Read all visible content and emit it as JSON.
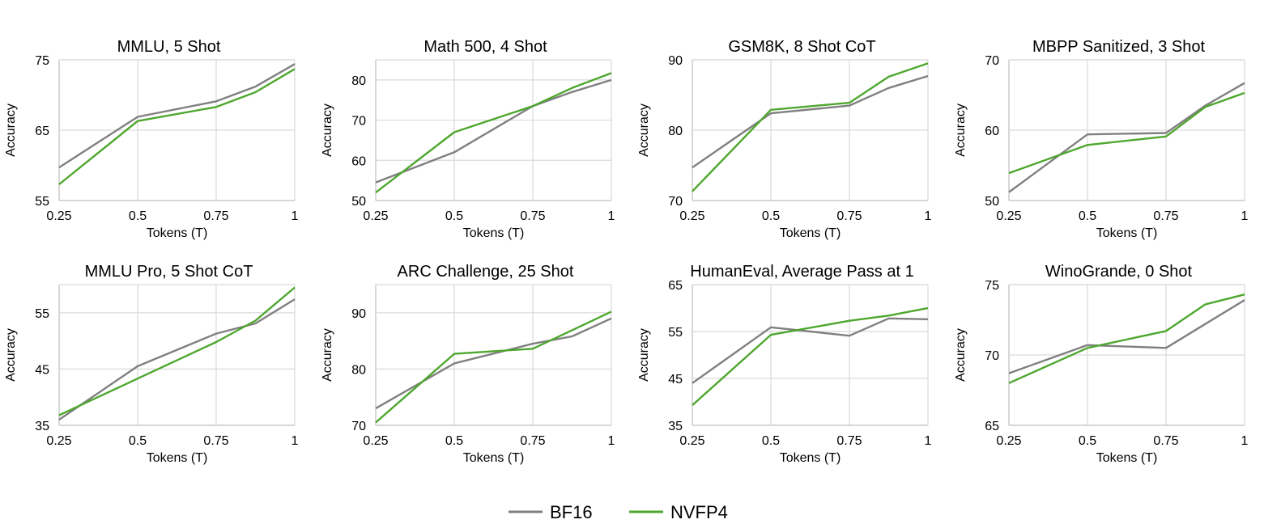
{
  "colors": {
    "BF16": "#808080",
    "NVFP4": "#4ea72e"
  },
  "legend": [
    {
      "name": "BF16",
      "color": "#808080"
    },
    {
      "name": "NVFP4",
      "color": "#4ea72e"
    }
  ],
  "chart_data": [
    {
      "type": "line",
      "title": "MMLU, 5 Shot",
      "xlabel": "Tokens (T)",
      "ylabel": "Accuracy",
      "xticks": [
        "0.25",
        "0.5",
        "0.75",
        "1"
      ],
      "yticks": [
        55,
        65,
        75
      ],
      "xlim": [
        0.25,
        1
      ],
      "ylim": [
        55,
        75
      ],
      "series": [
        {
          "name": "BF16",
          "x": [
            0.25,
            0.5,
            0.75,
            0.875,
            1
          ],
          "values": [
            59.7,
            66.9,
            69.1,
            71.2,
            74.4
          ]
        },
        {
          "name": "NVFP4",
          "x": [
            0.25,
            0.5,
            0.75,
            0.875,
            1
          ],
          "values": [
            57.3,
            66.3,
            68.3,
            70.4,
            73.7
          ]
        }
      ]
    },
    {
      "type": "line",
      "title": "Math 500, 4 Shot",
      "xlabel": "Tokens (T)",
      "ylabel": "Accuracy",
      "xticks": [
        "0.25",
        "0.5",
        "0.75",
        "1"
      ],
      "yticks": [
        50,
        60,
        70,
        80
      ],
      "xlim": [
        0.25,
        1
      ],
      "ylim": [
        50,
        85
      ],
      "series": [
        {
          "name": "BF16",
          "x": [
            0.25,
            0.5,
            0.75,
            0.875,
            1
          ],
          "values": [
            54.5,
            62.0,
            73.5,
            77.0,
            80.0
          ]
        },
        {
          "name": "NVFP4",
          "x": [
            0.25,
            0.5,
            0.75,
            0.875,
            1
          ],
          "values": [
            52.0,
            67.0,
            73.5,
            78.0,
            81.7
          ]
        }
      ]
    },
    {
      "type": "line",
      "title": "GSM8K, 8 Shot CoT",
      "xlabel": "Tokens (T)",
      "ylabel": "Accuracy",
      "xticks": [
        "0.25",
        "0.5",
        "0.75",
        "1"
      ],
      "yticks": [
        70,
        80,
        90
      ],
      "xlim": [
        0.25,
        1
      ],
      "ylim": [
        70,
        90
      ],
      "series": [
        {
          "name": "BF16",
          "x": [
            0.25,
            0.5,
            0.75,
            0.875,
            1
          ],
          "values": [
            74.7,
            82.4,
            83.5,
            86.0,
            87.7
          ]
        },
        {
          "name": "NVFP4",
          "x": [
            0.25,
            0.5,
            0.75,
            0.875,
            1
          ],
          "values": [
            71.3,
            82.9,
            83.9,
            87.6,
            89.5
          ]
        }
      ]
    },
    {
      "type": "line",
      "title": "MBPP Sanitized, 3 Shot",
      "xlabel": "Tokens (T)",
      "ylabel": "Accuracy",
      "xticks": [
        "0.25",
        "0.5",
        "0.75",
        "1"
      ],
      "yticks": [
        50,
        60,
        70
      ],
      "xlim": [
        0.25,
        1
      ],
      "ylim": [
        50,
        70
      ],
      "series": [
        {
          "name": "BF16",
          "x": [
            0.25,
            0.5,
            0.75,
            0.875,
            1
          ],
          "values": [
            51.2,
            59.4,
            59.6,
            63.5,
            66.7
          ]
        },
        {
          "name": "NVFP4",
          "x": [
            0.25,
            0.5,
            0.75,
            0.875,
            1
          ],
          "values": [
            53.9,
            57.9,
            59.1,
            63.3,
            65.3
          ]
        }
      ]
    },
    {
      "type": "line",
      "title": "MMLU Pro, 5 Shot CoT",
      "xlabel": "Tokens (T)",
      "ylabel": "Accuracy",
      "xticks": [
        "0.25",
        "0.5",
        "0.75",
        "1"
      ],
      "yticks": [
        35,
        45,
        55
      ],
      "xlim": [
        0.25,
        1
      ],
      "ylim": [
        35,
        60
      ],
      "series": [
        {
          "name": "BF16",
          "x": [
            0.25,
            0.5,
            0.75,
            0.875,
            1
          ],
          "values": [
            36.0,
            45.5,
            51.3,
            53.1,
            57.4
          ]
        },
        {
          "name": "NVFP4",
          "x": [
            0.25,
            0.5,
            0.75,
            0.875,
            1
          ],
          "values": [
            36.8,
            43.3,
            49.8,
            53.6,
            59.5
          ]
        }
      ]
    },
    {
      "type": "line",
      "title": "ARC Challenge, 25 Shot",
      "xlabel": "Tokens (T)",
      "ylabel": "Accuracy",
      "xticks": [
        "0.25",
        "0.5",
        "0.75",
        "1"
      ],
      "yticks": [
        70,
        80,
        90
      ],
      "xlim": [
        0.25,
        1
      ],
      "ylim": [
        70,
        95
      ],
      "series": [
        {
          "name": "BF16",
          "x": [
            0.25,
            0.5,
            0.75,
            0.875,
            1
          ],
          "values": [
            73.0,
            81.0,
            84.5,
            85.8,
            89.0
          ]
        },
        {
          "name": "NVFP4",
          "x": [
            0.25,
            0.5,
            0.75,
            0.875,
            1
          ],
          "values": [
            70.5,
            82.7,
            83.6,
            86.9,
            90.2
          ]
        }
      ]
    },
    {
      "type": "line",
      "title": "HumanEval, Average Pass at 1",
      "xlabel": "Tokens (T)",
      "ylabel": "Accuracy",
      "xticks": [
        "0.25",
        "0.5",
        "0.75",
        "1"
      ],
      "yticks": [
        35,
        45,
        55,
        65
      ],
      "xlim": [
        0.25,
        1
      ],
      "ylim": [
        35,
        65
      ],
      "series": [
        {
          "name": "BF16",
          "x": [
            0.25,
            0.5,
            0.75,
            0.875,
            1
          ],
          "values": [
            44.0,
            55.9,
            54.1,
            57.8,
            57.6
          ]
        },
        {
          "name": "NVFP4",
          "x": [
            0.25,
            0.5,
            0.75,
            0.875,
            1
          ],
          "values": [
            39.3,
            54.3,
            57.3,
            58.4,
            60.0
          ]
        }
      ]
    },
    {
      "type": "line",
      "title": "WinoGrande, 0 Shot",
      "xlabel": "Tokens (T)",
      "ylabel": "Accuracy",
      "xticks": [
        "0.25",
        "0.5",
        "0.75",
        "1"
      ],
      "yticks": [
        65,
        70,
        75
      ],
      "xlim": [
        0.25,
        1
      ],
      "ylim": [
        65,
        75
      ],
      "series": [
        {
          "name": "BF16",
          "x": [
            0.25,
            0.5,
            0.75,
            0.875,
            1
          ],
          "values": [
            68.7,
            70.7,
            70.5,
            72.2,
            73.9
          ]
        },
        {
          "name": "NVFP4",
          "x": [
            0.25,
            0.5,
            0.75,
            0.875,
            1
          ],
          "values": [
            68.0,
            70.5,
            71.7,
            73.6,
            74.3
          ]
        }
      ]
    }
  ]
}
